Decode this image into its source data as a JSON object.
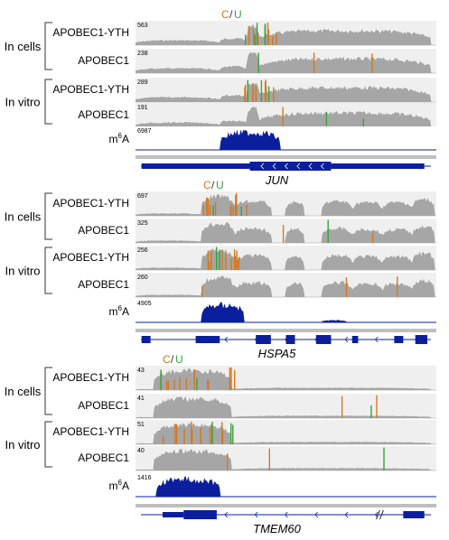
{
  "legend": {
    "c": "C",
    "slash": "/",
    "u": "U"
  },
  "colors": {
    "coverage": "#a6a6a6",
    "track_bg": "#efefef",
    "m6a": "#0b1f9e",
    "c_mark": "#d7781e",
    "u_mark": "#3aa33a",
    "gene": "#0b1f9e"
  },
  "panels": [
    {
      "gene": "JUN",
      "groups": [
        {
          "label": "In cells",
          "tracks": [
            {
              "name": "APOBEC1-YTH",
              "max": "563",
              "kind": "edit-dense"
            },
            {
              "name": "APOBEC1",
              "max": "238",
              "kind": "edit-sparse"
            }
          ]
        },
        {
          "label": "In vitro",
          "tracks": [
            {
              "name": "APOBEC1-YTH",
              "max": "289",
              "kind": "edit-dense"
            },
            {
              "name": "APOBEC1",
              "max": "191",
              "kind": "edit-sparse"
            }
          ]
        }
      ],
      "m6a": {
        "name": "m6A",
        "max": "6987"
      }
    },
    {
      "gene": "HSPA5",
      "groups": [
        {
          "label": "In cells",
          "tracks": [
            {
              "name": "APOBEC1-YTH",
              "max": "697",
              "kind": "edit-dense"
            },
            {
              "name": "APOBEC1",
              "max": "325",
              "kind": "edit-sparse"
            }
          ]
        },
        {
          "label": "In vitro",
          "tracks": [
            {
              "name": "APOBEC1-YTH",
              "max": "256",
              "kind": "edit-dense"
            },
            {
              "name": "APOBEC1",
              "max": "260",
              "kind": "edit-sparse"
            }
          ]
        }
      ],
      "m6a": {
        "name": "m6A",
        "max": "4905"
      }
    },
    {
      "gene": "TMEM60",
      "groups": [
        {
          "label": "In cells",
          "tracks": [
            {
              "name": "APOBEC1-YTH",
              "max": "43",
              "kind": "edit-dense"
            },
            {
              "name": "APOBEC1",
              "max": "41",
              "kind": "edit-sparse"
            }
          ]
        },
        {
          "label": "In vitro",
          "tracks": [
            {
              "name": "APOBEC1-YTH",
              "max": "51",
              "kind": "edit-dense"
            },
            {
              "name": "APOBEC1",
              "max": "40",
              "kind": "edit-sparse"
            }
          ]
        }
      ],
      "m6a": {
        "name": "m6A",
        "max": "1416"
      }
    }
  ]
}
